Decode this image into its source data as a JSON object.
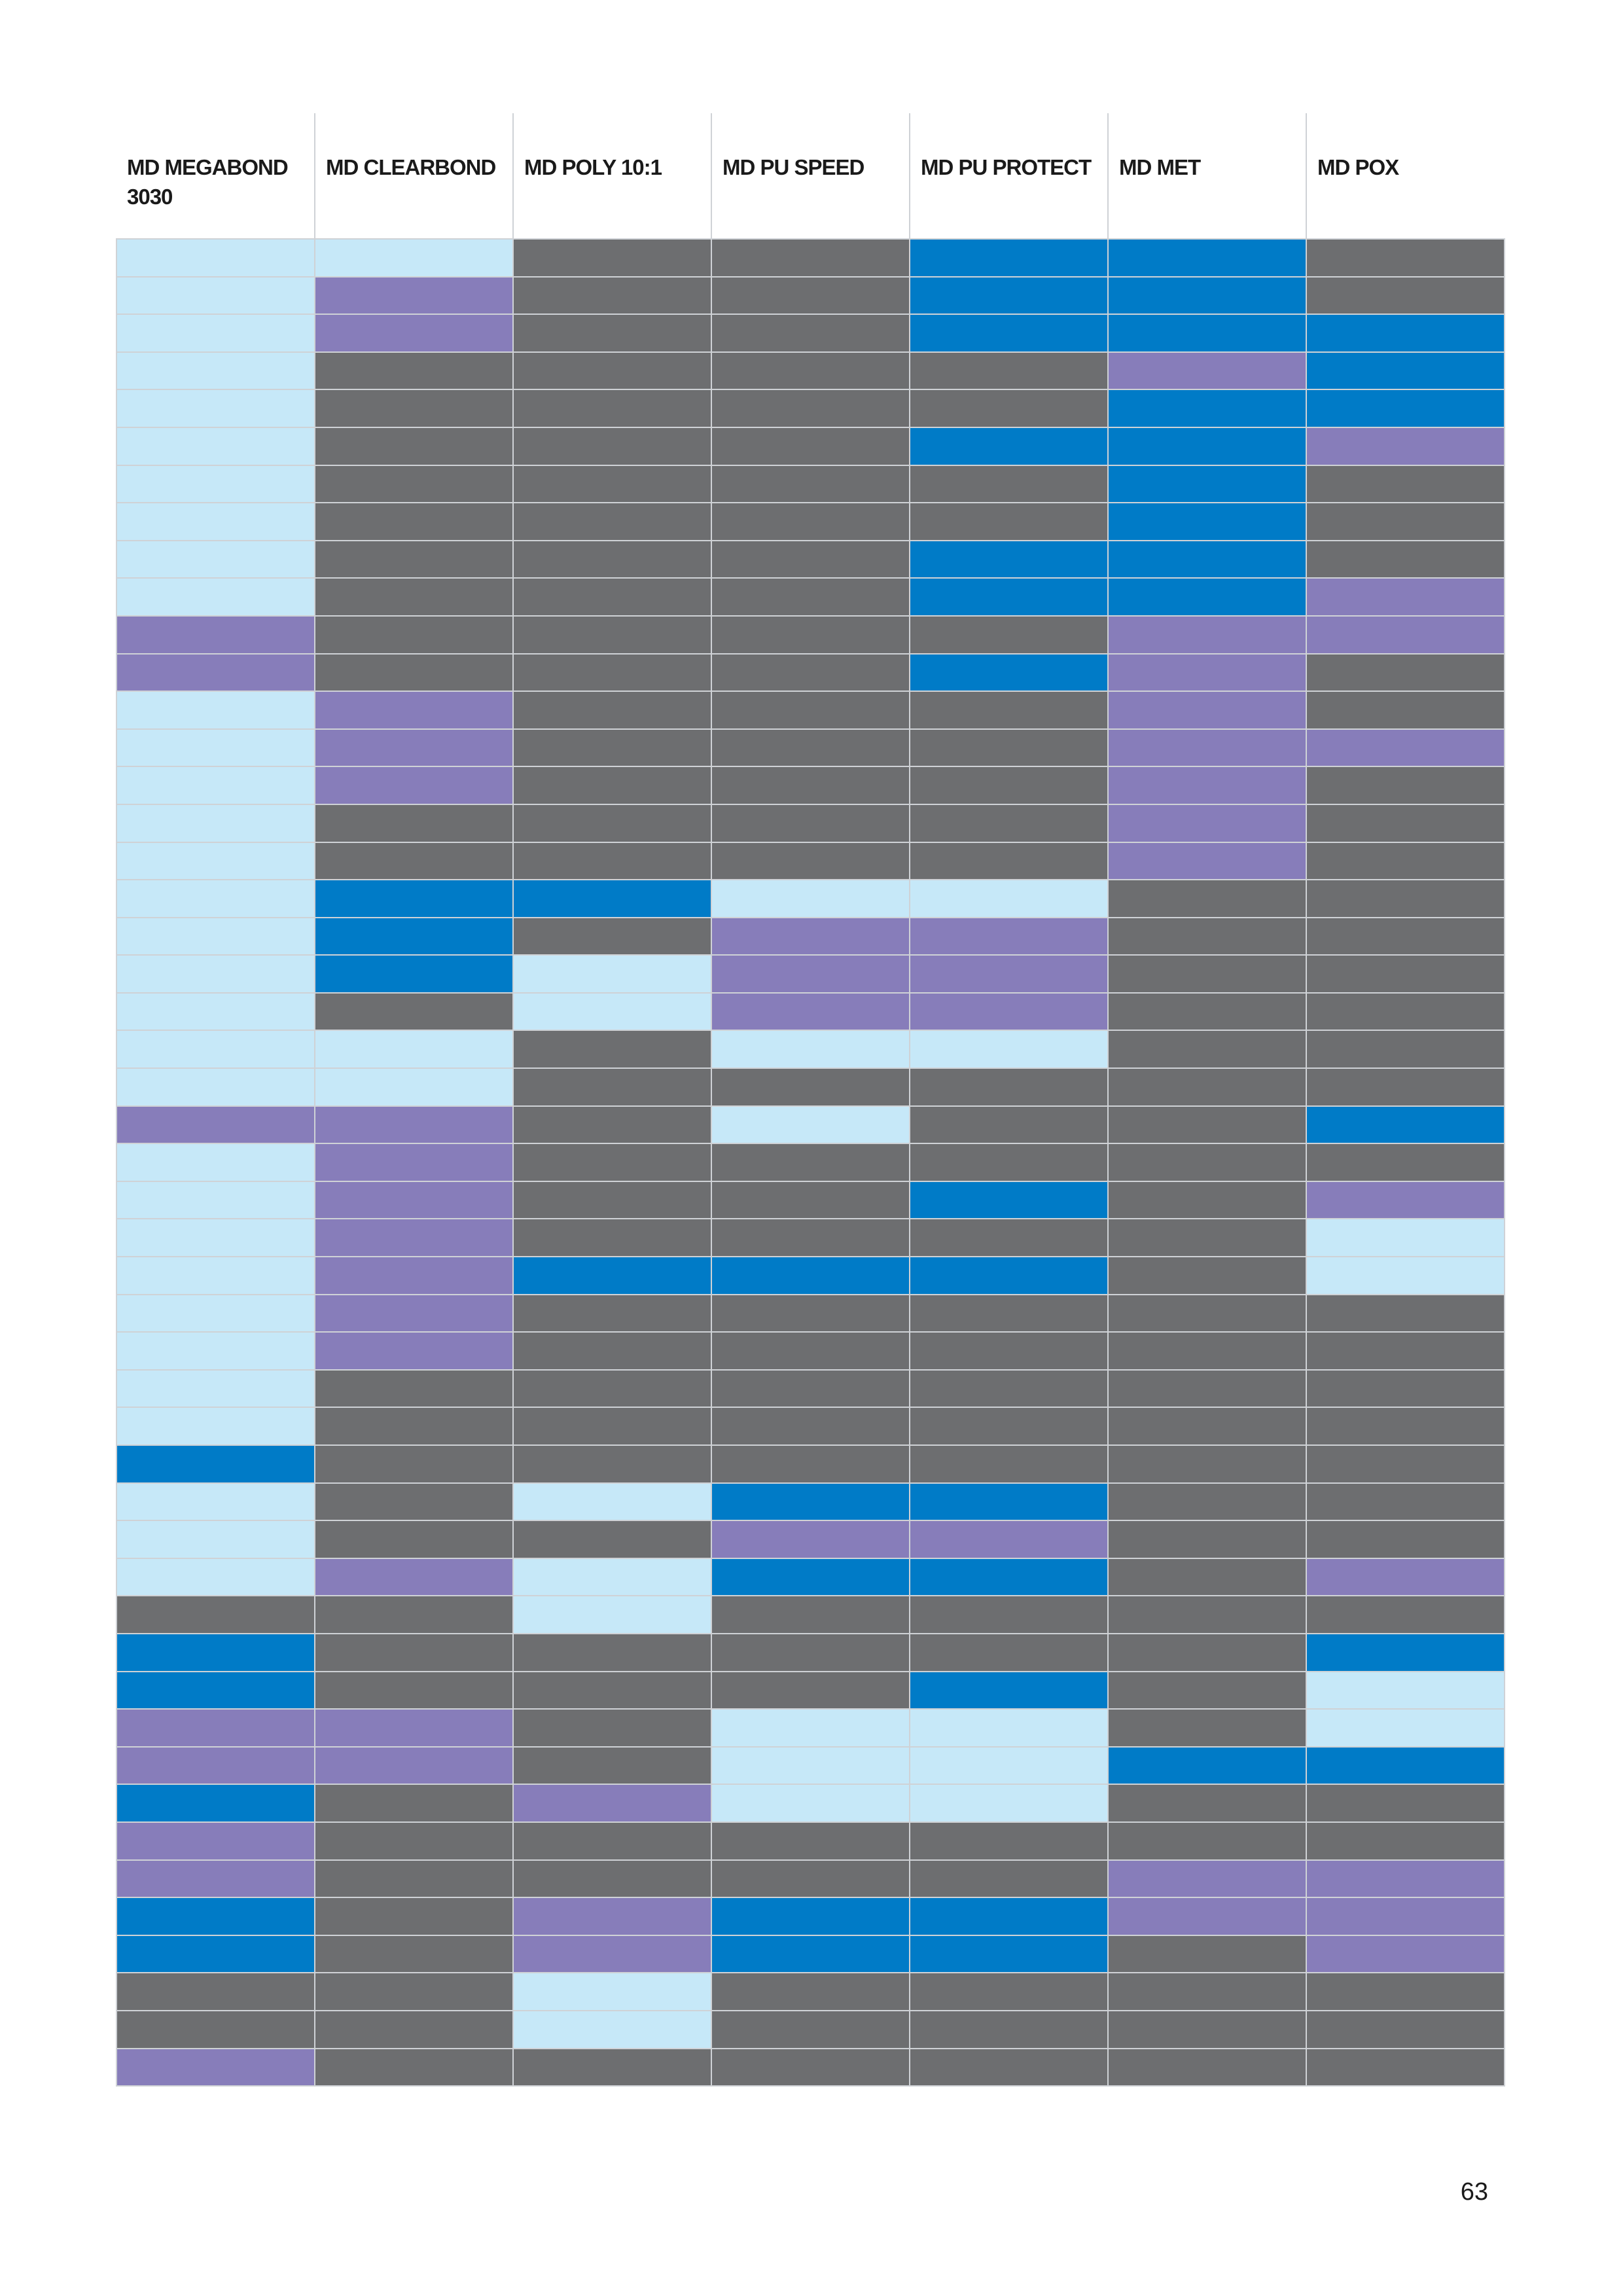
{
  "columns": [
    "MD MEGABOND 3030",
    "MD CLEARBOND",
    "MD POLY 10:1",
    "MD PU SPEED",
    "MD PU PROTECT",
    "MD MET",
    "MD POX"
  ],
  "legend_colors": {
    "L": "#c6e8f8",
    "P": "#877dba",
    "G": "#6d6e70",
    "B": "#007bc7"
  },
  "grid_rows": [
    "LLGGBBG",
    "LPGGBBG",
    "LPGGBBB",
    "LGGGGPB",
    "LGGGGBB",
    "LGGGBBP",
    "LGGGGBG",
    "LGGGGBG",
    "LGGGBBG",
    "LGGGBBP",
    "PGGGGPP",
    "PGGGBPG",
    "LPGGGPG",
    "LPGGGPP",
    "LPGGGPG",
    "LGGGGPG",
    "LGGGGPG",
    "LBBLLGG",
    "LBGPPGG",
    "LBLPPGG",
    "LGLPPGG",
    "LLGLLGG",
    "LLGGGGG",
    "PPGLGGB",
    "LPGGGGG",
    "LPGGBGP",
    "LPGGGGL",
    "LPBBBGL",
    "LPGGGGG",
    "LPGGGGG",
    "LGGGGGG",
    "LGGGGGG",
    "BGGGGGG",
    "LGLBBGG",
    "LGGPPGG",
    "LPLBBGP",
    "GGLGGGG",
    "BGGGGGB",
    "BGGGBGL",
    "PPGLLGL",
    "PPGLLBB",
    "BGPLLGG",
    "PGGGGGG",
    "PGGGGPP",
    "BGPBBPP",
    "BGPBBGP",
    "GGLGGGG",
    "GGLGGGG",
    "PGGGGGG"
  ],
  "page_number": "63"
}
